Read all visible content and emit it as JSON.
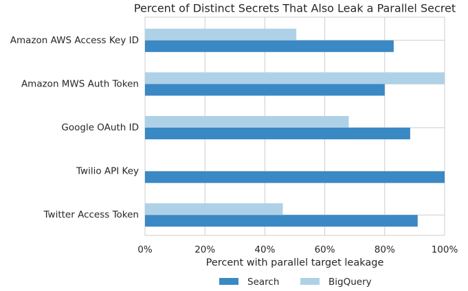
{
  "chart_data": {
    "type": "barh",
    "title": "Percent of Distinct Secrets That Also Leak a Parallel Secret",
    "x_label": "Percent with parallel target leakage",
    "categories": [
      "Amazon AWS Access Key ID",
      "Amazon MWS Auth Token",
      "Google OAuth ID",
      "Twilio API Key",
      "Twitter Access Token"
    ],
    "series": [
      {
        "name": "Search",
        "color": "#3a88c4",
        "values": [
          83,
          80,
          88.5,
          100,
          91
        ]
      },
      {
        "name": "BigQuery",
        "color": "#aed1e7",
        "values": [
          50.5,
          100,
          68,
          0,
          46
        ]
      }
    ],
    "xlim": [
      0,
      100
    ],
    "xticks": [
      {
        "value": 0,
        "label": "0%"
      },
      {
        "value": 20,
        "label": "20%"
      },
      {
        "value": 40,
        "label": "40%"
      },
      {
        "value": 60,
        "label": "60%"
      },
      {
        "value": 80,
        "label": "80%"
      },
      {
        "value": 100,
        "label": "100%"
      }
    ],
    "grid": true,
    "legend": "bottom"
  }
}
